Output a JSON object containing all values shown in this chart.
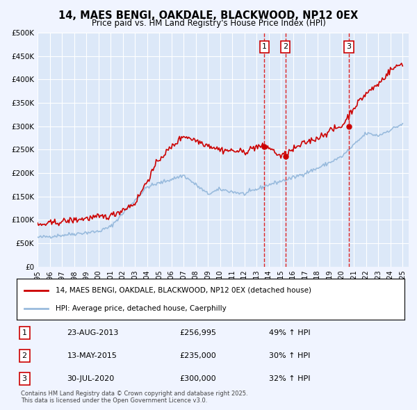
{
  "title": "14, MAES BENGI, OAKDALE, BLACKWOOD, NP12 0EX",
  "subtitle": "Price paid vs. HM Land Registry's House Price Index (HPI)",
  "xlabel": "",
  "ylabel": "",
  "ylim": [
    0,
    500000
  ],
  "xlim": [
    1995,
    2025.5
  ],
  "yticks": [
    0,
    50000,
    100000,
    150000,
    200000,
    250000,
    300000,
    350000,
    400000,
    450000,
    500000
  ],
  "ytick_labels": [
    "£0",
    "£50K",
    "£100K",
    "£150K",
    "£200K",
    "£250K",
    "£300K",
    "£350K",
    "£400K",
    "£450K",
    "£500K"
  ],
  "xticks": [
    1995,
    1996,
    1997,
    1998,
    1999,
    2000,
    2001,
    2002,
    2003,
    2004,
    2005,
    2006,
    2007,
    2008,
    2009,
    2010,
    2011,
    2012,
    2013,
    2014,
    2015,
    2016,
    2017,
    2018,
    2019,
    2020,
    2021,
    2022,
    2023,
    2024,
    2025
  ],
  "background_color": "#f0f4ff",
  "plot_bg_color": "#dce8f8",
  "grid_color": "#ffffff",
  "red_line_color": "#cc0000",
  "blue_line_color": "#99bbdd",
  "sale_marker_color": "#cc0000",
  "vline_color": "#dd2222",
  "transaction_labels": [
    "1",
    "2",
    "3"
  ],
  "transaction_dates": [
    2013.647,
    2015.364,
    2020.578
  ],
  "transaction_prices": [
    256995,
    235000,
    300000
  ],
  "transaction_info": [
    {
      "num": "1",
      "date": "23-AUG-2013",
      "price": "£256,995",
      "hpi": "49% ↑ HPI"
    },
    {
      "num": "2",
      "date": "13-MAY-2015",
      "price": "£235,000",
      "hpi": "30% ↑ HPI"
    },
    {
      "num": "3",
      "date": "30-JUL-2020",
      "price": "£300,000",
      "hpi": "32% ↑ HPI"
    }
  ],
  "legend_entries": [
    {
      "label": "14, MAES BENGI, OAKDALE, BLACKWOOD, NP12 0EX (detached house)",
      "color": "#cc0000"
    },
    {
      "label": "HPI: Average price, detached house, Caerphilly",
      "color": "#99bbdd"
    }
  ],
  "footer": "Contains HM Land Registry data © Crown copyright and database right 2025.\nThis data is licensed under the Open Government Licence v3.0."
}
